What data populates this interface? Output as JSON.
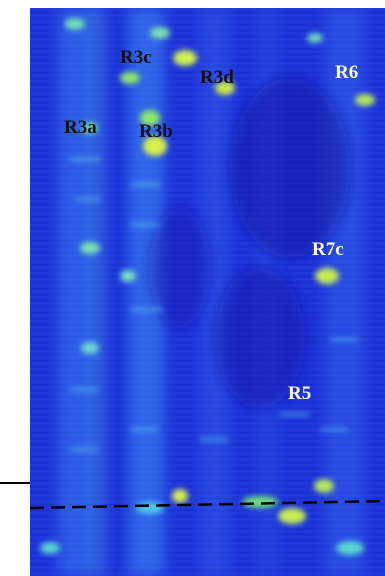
{
  "image": {
    "description_colors": {
      "background_blue": "#1f38e0",
      "deep_blue": "#1a1fb8",
      "band_cyan": "#2fa6f0",
      "hot_yellow": "#d8f04a",
      "green": "#6be07a"
    }
  },
  "labels": {
    "r3a": "R3a",
    "r3b": "R3b",
    "r3c": "R3c",
    "r3d": "R3d",
    "r6": "R6",
    "r7c": "R7c",
    "r5": "R5"
  },
  "icons": {
    "dashed_line": "dashed-reference-line"
  }
}
